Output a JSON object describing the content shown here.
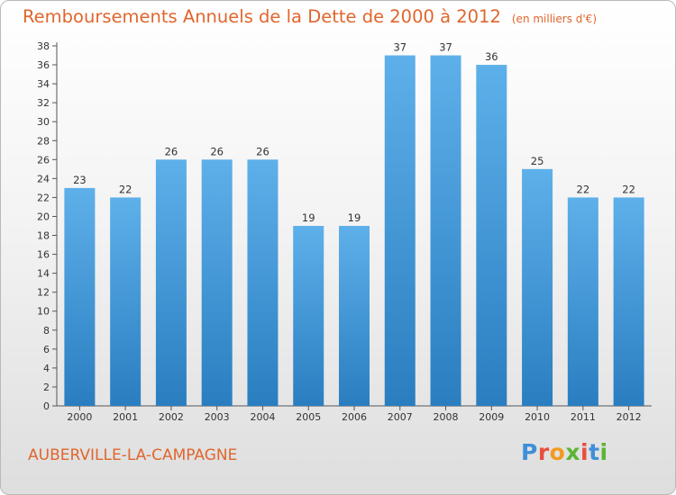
{
  "chart_data": {
    "type": "bar",
    "title": "Remboursements Annuels de la Dette de 2000 à 2012",
    "unit_note": "(en milliers d'€)",
    "categories": [
      "2000",
      "2001",
      "2002",
      "2003",
      "2004",
      "2005",
      "2006",
      "2007",
      "2008",
      "2009",
      "2010",
      "2011",
      "2012"
    ],
    "values": [
      23,
      22,
      26,
      26,
      26,
      19,
      19,
      37,
      37,
      36,
      25,
      22,
      22
    ],
    "ylim": [
      0,
      38
    ],
    "yticks": [
      0,
      2,
      4,
      6,
      8,
      10,
      12,
      14,
      16,
      18,
      20,
      22,
      24,
      26,
      28,
      30,
      32,
      34,
      36,
      38
    ],
    "xlabel": "",
    "ylabel": "",
    "grid": false,
    "bar_color_top": "#5eb0ea",
    "bar_color_bottom": "#2a7ec0"
  },
  "footer": {
    "commune": "AUBERVILLE-LA-CAMPAGNE",
    "logo_letters": [
      "P",
      "r",
      "o",
      "x",
      "i",
      "t",
      "i"
    ],
    "logo_colors": [
      "#3f8fd8",
      "#e84f3d",
      "#f39a1e",
      "#5bb535",
      "#e84f3d",
      "#3f8fd8",
      "#5bb535"
    ]
  },
  "colors": {
    "title": "#e0662d",
    "axis": "#555555"
  }
}
